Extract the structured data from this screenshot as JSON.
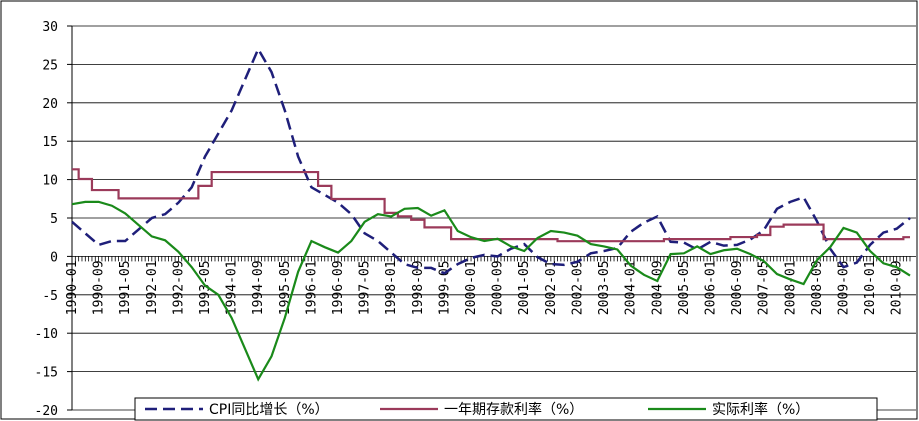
{
  "chart_data": {
    "type": "line",
    "categories": [
      "1990-01",
      null,
      "1990-09",
      null,
      "1991-05",
      null,
      "1992-01",
      null,
      "1992-09",
      null,
      "1993-05",
      null,
      "1994-01",
      null,
      "1994-09",
      null,
      "1995-05",
      null,
      "1996-01",
      null,
      "1996-09",
      null,
      "1997-05",
      null,
      "1998-01",
      null,
      "1998-09",
      null,
      "1999-05",
      null,
      "2000-01",
      null,
      "2000-09",
      null,
      "2001-05",
      null,
      "2002-01",
      null,
      "2002-09",
      null,
      "2003-05",
      null,
      "2004-01",
      null,
      "2004-09",
      null,
      "2005-05",
      null,
      "2006-01",
      null,
      "2006-09",
      null,
      "2007-05",
      null,
      "2008-01",
      null,
      "2008-09",
      null,
      "2009-05",
      null,
      "2010-01",
      null,
      "2010-09",
      null
    ],
    "series": [
      {
        "name": "CPI同比增长（%）",
        "color": "#1f1f7a",
        "dash": true,
        "values": [
          4.5,
          3,
          1.5,
          2,
          2,
          3.5,
          5,
          5.5,
          7,
          9,
          13,
          16,
          19,
          23,
          27,
          24,
          19,
          13,
          9,
          8,
          7,
          5.5,
          3,
          2,
          0.5,
          -1,
          -1.5,
          -1.5,
          -2.2,
          -1,
          -0.2,
          0.2,
          0,
          1,
          1.6,
          -0.1,
          -1,
          -1.1,
          -0.7,
          0.4,
          0.7,
          1.1,
          3.2,
          4.4,
          5.2,
          1.9,
          1.8,
          0.9,
          1.9,
          1.4,
          1.5,
          2.2,
          3.4,
          6.2,
          7.1,
          7.7,
          4.6,
          1,
          -1.4,
          -0.8,
          1.5,
          3.1,
          3.6,
          5
        ]
      },
      {
        "name": "一年期存款利率（%）",
        "color": "#9b3a5a",
        "step": true,
        "values": [
          11.34,
          10.08,
          8.64,
          8.64,
          7.56,
          7.56,
          7.56,
          7.56,
          7.56,
          7.56,
          9.18,
          10.98,
          10.98,
          10.98,
          10.98,
          10.98,
          10.98,
          10.98,
          10.98,
          9.18,
          7.47,
          7.47,
          7.47,
          7.47,
          5.67,
          5.22,
          4.77,
          3.78,
          3.78,
          2.25,
          2.25,
          2.25,
          2.25,
          2.25,
          2.25,
          2.25,
          2.25,
          1.98,
          1.98,
          1.98,
          1.98,
          1.98,
          1.98,
          1.98,
          1.98,
          2.25,
          2.25,
          2.25,
          2.25,
          2.25,
          2.52,
          2.52,
          2.79,
          3.87,
          4.14,
          4.14,
          4.14,
          2.25,
          2.25,
          2.25,
          2.25,
          2.25,
          2.25,
          2.5
        ]
      },
      {
        "name": "实际利率（%）",
        "color": "#1a8a1a",
        "values": [
          6.8,
          7.1,
          7.1,
          6.6,
          5.6,
          4.1,
          2.6,
          2.1,
          0.6,
          -1.4,
          -3.8,
          -5,
          -8,
          -12,
          -16,
          -13,
          -8,
          -2,
          2,
          1.2,
          0.5,
          2,
          4.5,
          5.5,
          5.2,
          6.2,
          6.3,
          5.3,
          6,
          3.3,
          2.5,
          2,
          2.3,
          1.3,
          0.7,
          2.4,
          3.3,
          3.1,
          2.7,
          1.6,
          1.3,
          0.9,
          -1.2,
          -2.4,
          -3.2,
          0.3,
          0.4,
          1.3,
          0.3,
          0.8,
          1,
          0.3,
          -0.6,
          -2.3,
          -3,
          -3.6,
          -0.5,
          1.2,
          3.7,
          3.1,
          0.7,
          -0.9,
          -1.4,
          -2.5
        ]
      }
    ],
    "ylim": [
      -20,
      30
    ],
    "yticks": [
      -20,
      -15,
      -10,
      -5,
      0,
      5,
      10,
      15,
      20,
      25,
      30
    ],
    "grid": true
  }
}
